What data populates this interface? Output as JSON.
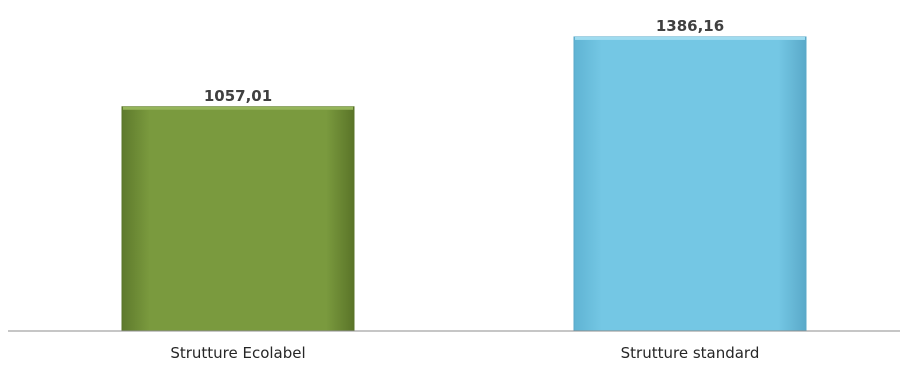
{
  "chart_data": {
    "type": "bar",
    "categories": [
      "Strutture Ecolabel",
      "Strutture standard"
    ],
    "values": [
      1057.01,
      1386.16
    ],
    "value_labels": [
      "1057,01",
      "1386,16"
    ],
    "title": "",
    "xlabel": "",
    "ylabel": "",
    "ylim": [
      0,
      1400
    ],
    "grid": false,
    "legend": "none",
    "colors": [
      "#76923c",
      "#6cc3e0"
    ]
  }
}
